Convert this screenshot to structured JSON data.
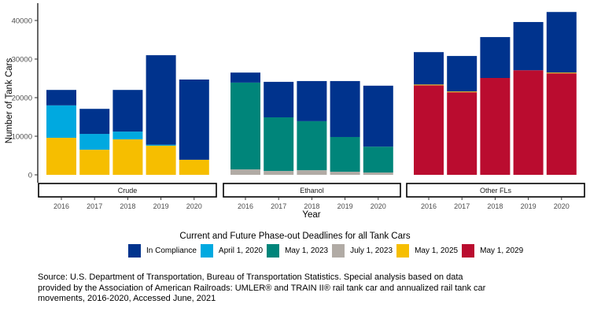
{
  "chart_data": {
    "type": "bar",
    "stacked": true,
    "facets": [
      "Crude",
      "Ethanol",
      "Other FLs"
    ],
    "categories": [
      "2016",
      "2017",
      "2018",
      "2019",
      "2020"
    ],
    "xlabel": "Year",
    "ylabel": "Number of Tank Cars",
    "ylim": [
      0,
      44000
    ],
    "yticks": [
      0,
      10000,
      20000,
      30000,
      40000
    ],
    "legend_title": "Current and Future Phase-out Deadlines for all Tank Cars",
    "legend_position": "bottom",
    "series_order": [
      "May 1, 2029",
      "May 1, 2025",
      "July 1, 2023",
      "May 1, 2023",
      "April 1, 2020",
      "In Compliance"
    ],
    "legend_order": [
      "In Compliance",
      "April 1, 2020",
      "May 1, 2023",
      "July 1, 2023",
      "May 1, 2025",
      "May 1, 2029"
    ],
    "colors": {
      "In Compliance": "#00338D",
      "April 1, 2020": "#00A9E0",
      "May 1, 2023": "#00857A",
      "July 1, 2023": "#B1ABA5",
      "May 1, 2025": "#F6BE00",
      "May 1, 2029": "#BA0C2F"
    },
    "data": {
      "Crude": {
        "In Compliance": [
          4000,
          6500,
          10800,
          23200,
          20800
        ],
        "April 1, 2020": [
          8400,
          4100,
          2000,
          250,
          0
        ],
        "May 1, 2023": [
          0,
          0,
          0,
          0,
          0
        ],
        "July 1, 2023": [
          0,
          0,
          0,
          0,
          0
        ],
        "May 1, 2025": [
          9600,
          6500,
          9200,
          7550,
          3900
        ],
        "May 1, 2029": [
          0,
          0,
          0,
          0,
          0
        ]
      },
      "Ethanol": {
        "In Compliance": [
          2600,
          9200,
          10400,
          14500,
          15800
        ],
        "April 1, 2020": [
          0,
          0,
          0,
          0,
          0
        ],
        "May 1, 2023": [
          22500,
          13900,
          12700,
          9000,
          6700
        ],
        "July 1, 2023": [
          1400,
          1000,
          1200,
          800,
          600
        ],
        "May 1, 2025": [
          0,
          0,
          0,
          0,
          0
        ],
        "May 1, 2029": [
          0,
          0,
          0,
          0,
          0
        ]
      },
      "Other FLs": {
        "In Compliance": [
          8400,
          9200,
          10600,
          12500,
          15700
        ],
        "April 1, 2020": [
          0,
          0,
          0,
          0,
          0
        ],
        "May 1, 2023": [
          0,
          0,
          0,
          0,
          0
        ],
        "July 1, 2023": [
          0,
          0,
          0,
          0,
          0
        ],
        "May 1, 2025": [
          200,
          200,
          0,
          0,
          200
        ],
        "May 1, 2029": [
          23200,
          21400,
          25100,
          27100,
          26300
        ]
      }
    }
  },
  "source": "Source: U.S. Department of Transportation, Bureau of Transportation Statistics. Special analysis based on data provided by the Association of American Railroads: UMLER® and TRAIN II® rail tank car and annualized rail tank car movements, 2016-2020, Accessed June, 2021"
}
